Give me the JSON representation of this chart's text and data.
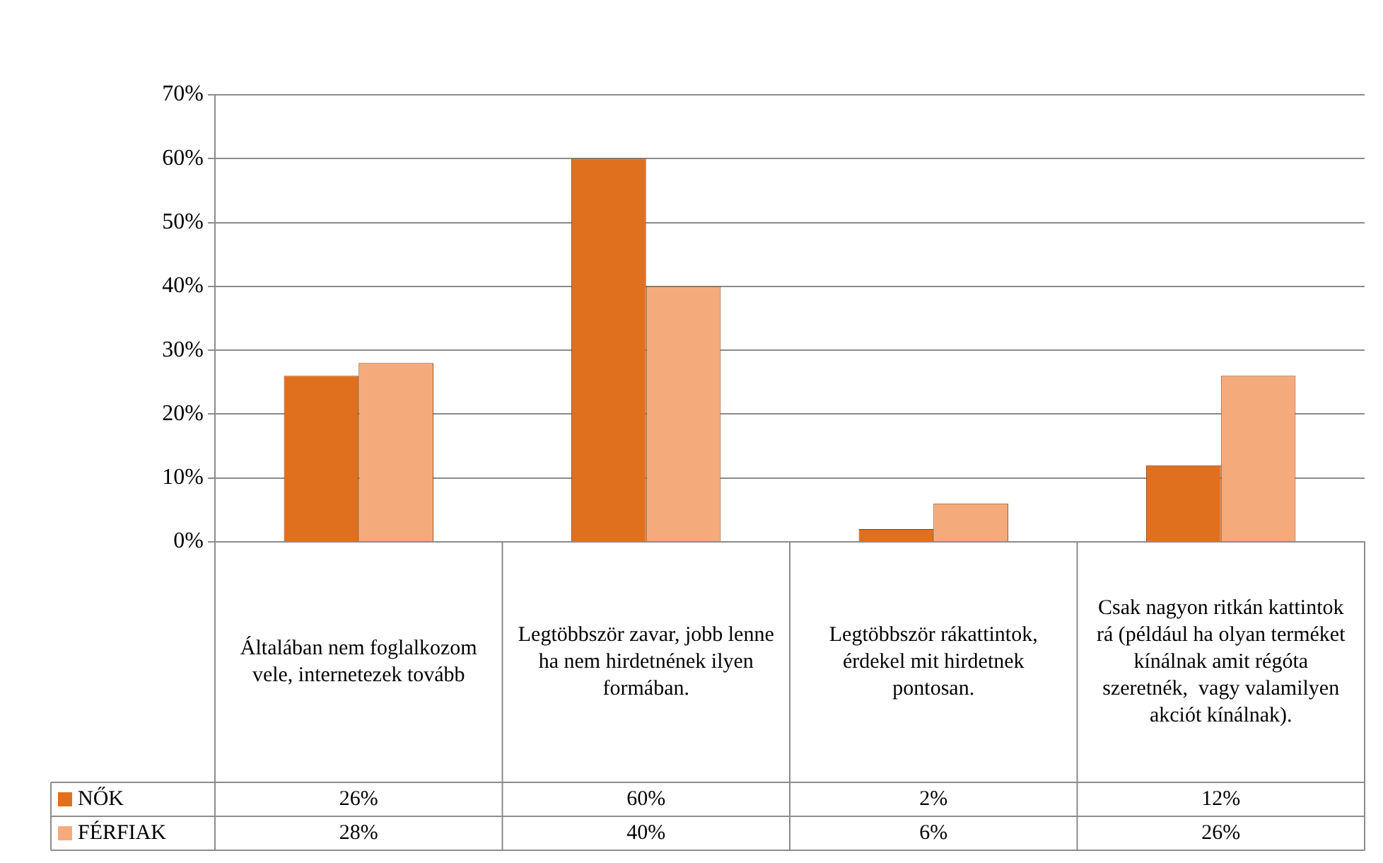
{
  "chart_data": {
    "type": "bar",
    "categories": [
      "Általában nem foglalkozom vele, internetezek tovább",
      "Legtöbbször zavar, jobb lenne ha nem hirdetnének ilyen formában.",
      "Legtöbbször rákattintok, érdekel mit hirdetnek pontosan.",
      "Csak nagyon ritkán kattintok rá (például ha olyan terméket kínálnak amit régóta szeretnék,  vagy valamilyen akciót kínálnak)."
    ],
    "series": [
      {
        "name": "NŐK",
        "color": "#e0701e",
        "values": [
          26,
          60,
          2,
          12
        ],
        "value_labels": [
          "26%",
          "60%",
          "2%",
          "12%"
        ]
      },
      {
        "name": "FÉRFIAK",
        "color": "#f5aa7c",
        "values": [
          28,
          40,
          6,
          26
        ],
        "value_labels": [
          "28%",
          "40%",
          "6%",
          "26%"
        ]
      }
    ],
    "ylim": [
      0,
      70
    ],
    "yticks": [
      {
        "value": 0,
        "label": "0%"
      },
      {
        "value": 10,
        "label": "10%"
      },
      {
        "value": 20,
        "label": "20%"
      },
      {
        "value": 30,
        "label": "30%"
      },
      {
        "value": 40,
        "label": "40%"
      },
      {
        "value": 50,
        "label": "50%"
      },
      {
        "value": 60,
        "label": "60%"
      },
      {
        "value": 70,
        "label": "70%"
      }
    ],
    "grid": "y",
    "legend": "bottom left"
  }
}
